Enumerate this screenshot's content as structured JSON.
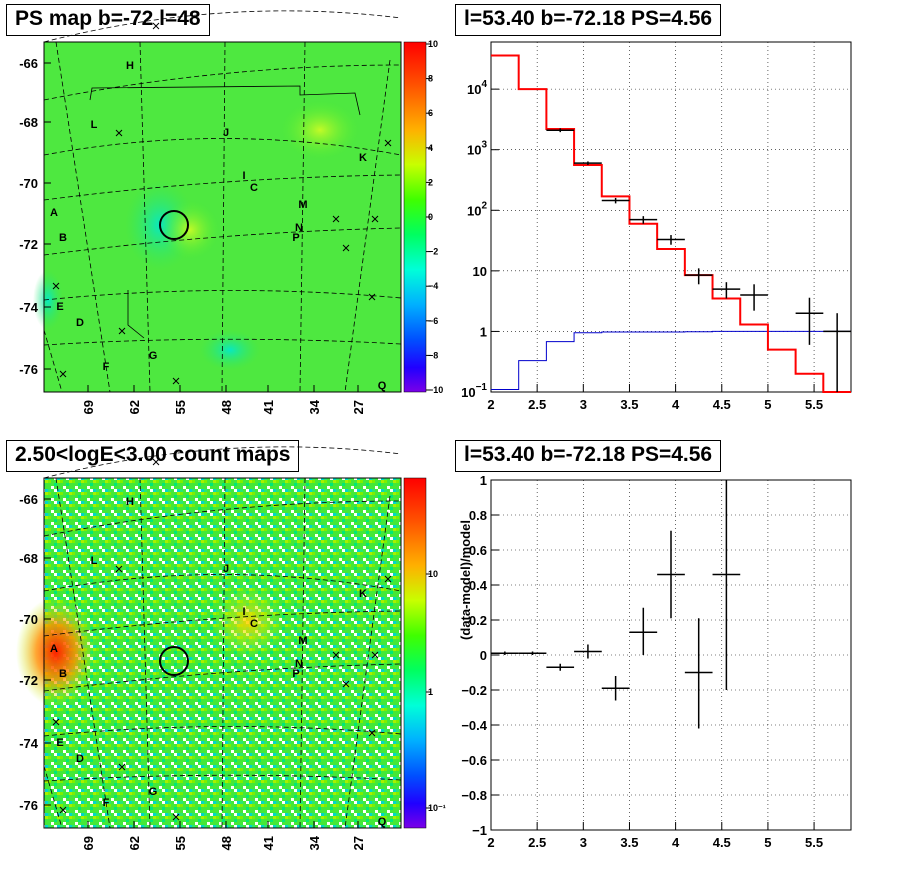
{
  "panels": {
    "ps_map_title": "PS map b=-72 l=48",
    "count_map_title": "2.50<logE<3.00 count maps",
    "spectrum_title": "l=53.40 b=-72.18 PS=4.56",
    "residual_title": "l=53.40 b=-72.18 PS=4.56"
  },
  "colors": {
    "data": "#000000",
    "model": "#ff0000",
    "background_model": "#0000cc",
    "map_green": "#2ee82e",
    "grid": "#000000"
  },
  "maps": {
    "lat_ticks": [
      "-66",
      "-68",
      "-70",
      "-72",
      "-74",
      "-76"
    ],
    "lon_ticks": [
      "69",
      "62",
      "55",
      "48",
      "41",
      "34",
      "27"
    ],
    "ps_scale_labels": [
      "10",
      "8",
      "6",
      "4",
      "2",
      "0",
      "-2",
      "-4",
      "-6",
      "-8",
      "-10"
    ],
    "count_scale_labels": [
      "10",
      "1",
      "10⁻¹"
    ],
    "sources": [
      "H",
      "L",
      "J",
      "K",
      "I",
      "C",
      "A",
      "M",
      "N",
      "B",
      "P",
      "E",
      "D",
      "G",
      "F",
      "Q"
    ],
    "target": {
      "l": 53.4,
      "b": -72.18
    }
  },
  "chart_data": [
    {
      "type": "line",
      "title": "l=53.40 b=-72.18 PS=4.56",
      "xlabel": "",
      "ylabel": "",
      "xlim": [
        2.0,
        5.9
      ],
      "ylim": [
        0.1,
        60000
      ],
      "yscale": "log",
      "grid": true,
      "x_ticks": [
        "2",
        "2.5",
        "3",
        "3.5",
        "4",
        "4.5",
        "5",
        "5.5"
      ],
      "y_ticks": [
        {
          "label": "10",
          "sup": "4",
          "value": 10000
        },
        {
          "label": "10",
          "sup": "3",
          "value": 1000
        },
        {
          "label": "10",
          "sup": "2",
          "value": 100
        },
        {
          "label": "10",
          "sup": "",
          "value": 10
        },
        {
          "label": "1",
          "sup": "",
          "value": 1
        },
        {
          "label": "10",
          "sup": "−1",
          "value": 0.1
        }
      ],
      "series": [
        {
          "kind": "errorbar",
          "points": [
            {
              "x": 2.75,
              "xerr": 0.15,
              "y": 2100,
              "ylo": 1950,
              "yhi": 2250
            },
            {
              "x": 3.05,
              "xerr": 0.15,
              "y": 600,
              "ylo": 560,
              "yhi": 640
            },
            {
              "x": 3.35,
              "xerr": 0.15,
              "y": 145,
              "ylo": 130,
              "yhi": 160
            },
            {
              "x": 3.65,
              "xerr": 0.15,
              "y": 70,
              "ylo": 60,
              "yhi": 80
            },
            {
              "x": 3.95,
              "xerr": 0.15,
              "y": 33,
              "ylo": 27,
              "yhi": 39
            },
            {
              "x": 4.25,
              "xerr": 0.15,
              "y": 8.5,
              "ylo": 6,
              "yhi": 11
            },
            {
              "x": 4.55,
              "xerr": 0.15,
              "y": 5,
              "ylo": 3.5,
              "yhi": 6.5
            },
            {
              "x": 4.85,
              "xerr": 0.15,
              "y": 4,
              "ylo": 2.2,
              "yhi": 6
            },
            {
              "x": 5.45,
              "xerr": 0.15,
              "y": 2,
              "ylo": 0.6,
              "yhi": 3.6
            },
            {
              "x": 5.75,
              "xerr": 0.15,
              "y": 1,
              "ylo": 0.1,
              "yhi": 2
            }
          ]
        },
        {
          "kind": "step",
          "edges": [
            2.0,
            2.3,
            2.6,
            2.9,
            3.2,
            3.5,
            3.8,
            4.1,
            4.4,
            4.7,
            5.0,
            5.3,
            5.6,
            5.9
          ],
          "values": [
            36000,
            10000,
            2200,
            560,
            170,
            60,
            23,
            8.5,
            3.5,
            1.3,
            0.5,
            0.2,
            0.09
          ]
        },
        {
          "kind": "step",
          "edges": [
            2.0,
            2.3,
            2.6,
            2.9,
            3.2,
            3.5,
            3.8,
            4.1,
            4.4,
            4.7,
            5.0,
            5.3,
            5.6,
            5.9
          ],
          "values": [
            0.11,
            0.33,
            0.68,
            0.95,
            0.98,
            0.98,
            0.98,
            0.99,
            1.0,
            1.0,
            1.0,
            1.0,
            1.0
          ]
        }
      ]
    },
    {
      "type": "scatter",
      "title": "l=53.40 b=-72.18 PS=4.56",
      "xlabel": "",
      "ylabel": "(data-model)/model",
      "xlim": [
        2.0,
        5.9
      ],
      "ylim": [
        -1,
        1
      ],
      "grid": true,
      "x_ticks": [
        "2",
        "2.5",
        "3",
        "3.5",
        "4",
        "4.5",
        "5",
        "5.5"
      ],
      "y_ticks": [
        "1",
        "0.8",
        "0.6",
        "0.4",
        "0.2",
        "0",
        "−0.2",
        "−0.4",
        "−0.6",
        "−0.8",
        "−1"
      ],
      "points": [
        {
          "x": 2.15,
          "xerr": 0.15,
          "y": 0.01,
          "ylo": 0.0,
          "yhi": 0.02
        },
        {
          "x": 2.45,
          "xerr": 0.15,
          "y": 0.01,
          "ylo": 0.0,
          "yhi": 0.02
        },
        {
          "x": 2.75,
          "xerr": 0.15,
          "y": -0.07,
          "ylo": -0.09,
          "yhi": -0.05
        },
        {
          "x": 3.05,
          "xerr": 0.15,
          "y": 0.02,
          "ylo": -0.02,
          "yhi": 0.06
        },
        {
          "x": 3.35,
          "xerr": 0.15,
          "y": -0.19,
          "ylo": -0.26,
          "yhi": -0.12
        },
        {
          "x": 3.65,
          "xerr": 0.15,
          "y": 0.13,
          "ylo": 0.0,
          "yhi": 0.27
        },
        {
          "x": 3.95,
          "xerr": 0.15,
          "y": 0.46,
          "ylo": 0.21,
          "yhi": 0.71
        },
        {
          "x": 4.25,
          "xerr": 0.15,
          "y": -0.1,
          "ylo": -0.42,
          "yhi": 0.21
        },
        {
          "x": 4.55,
          "xerr": 0.15,
          "y": 0.46,
          "ylo": -0.2,
          "yhi": 1.0
        }
      ]
    }
  ]
}
